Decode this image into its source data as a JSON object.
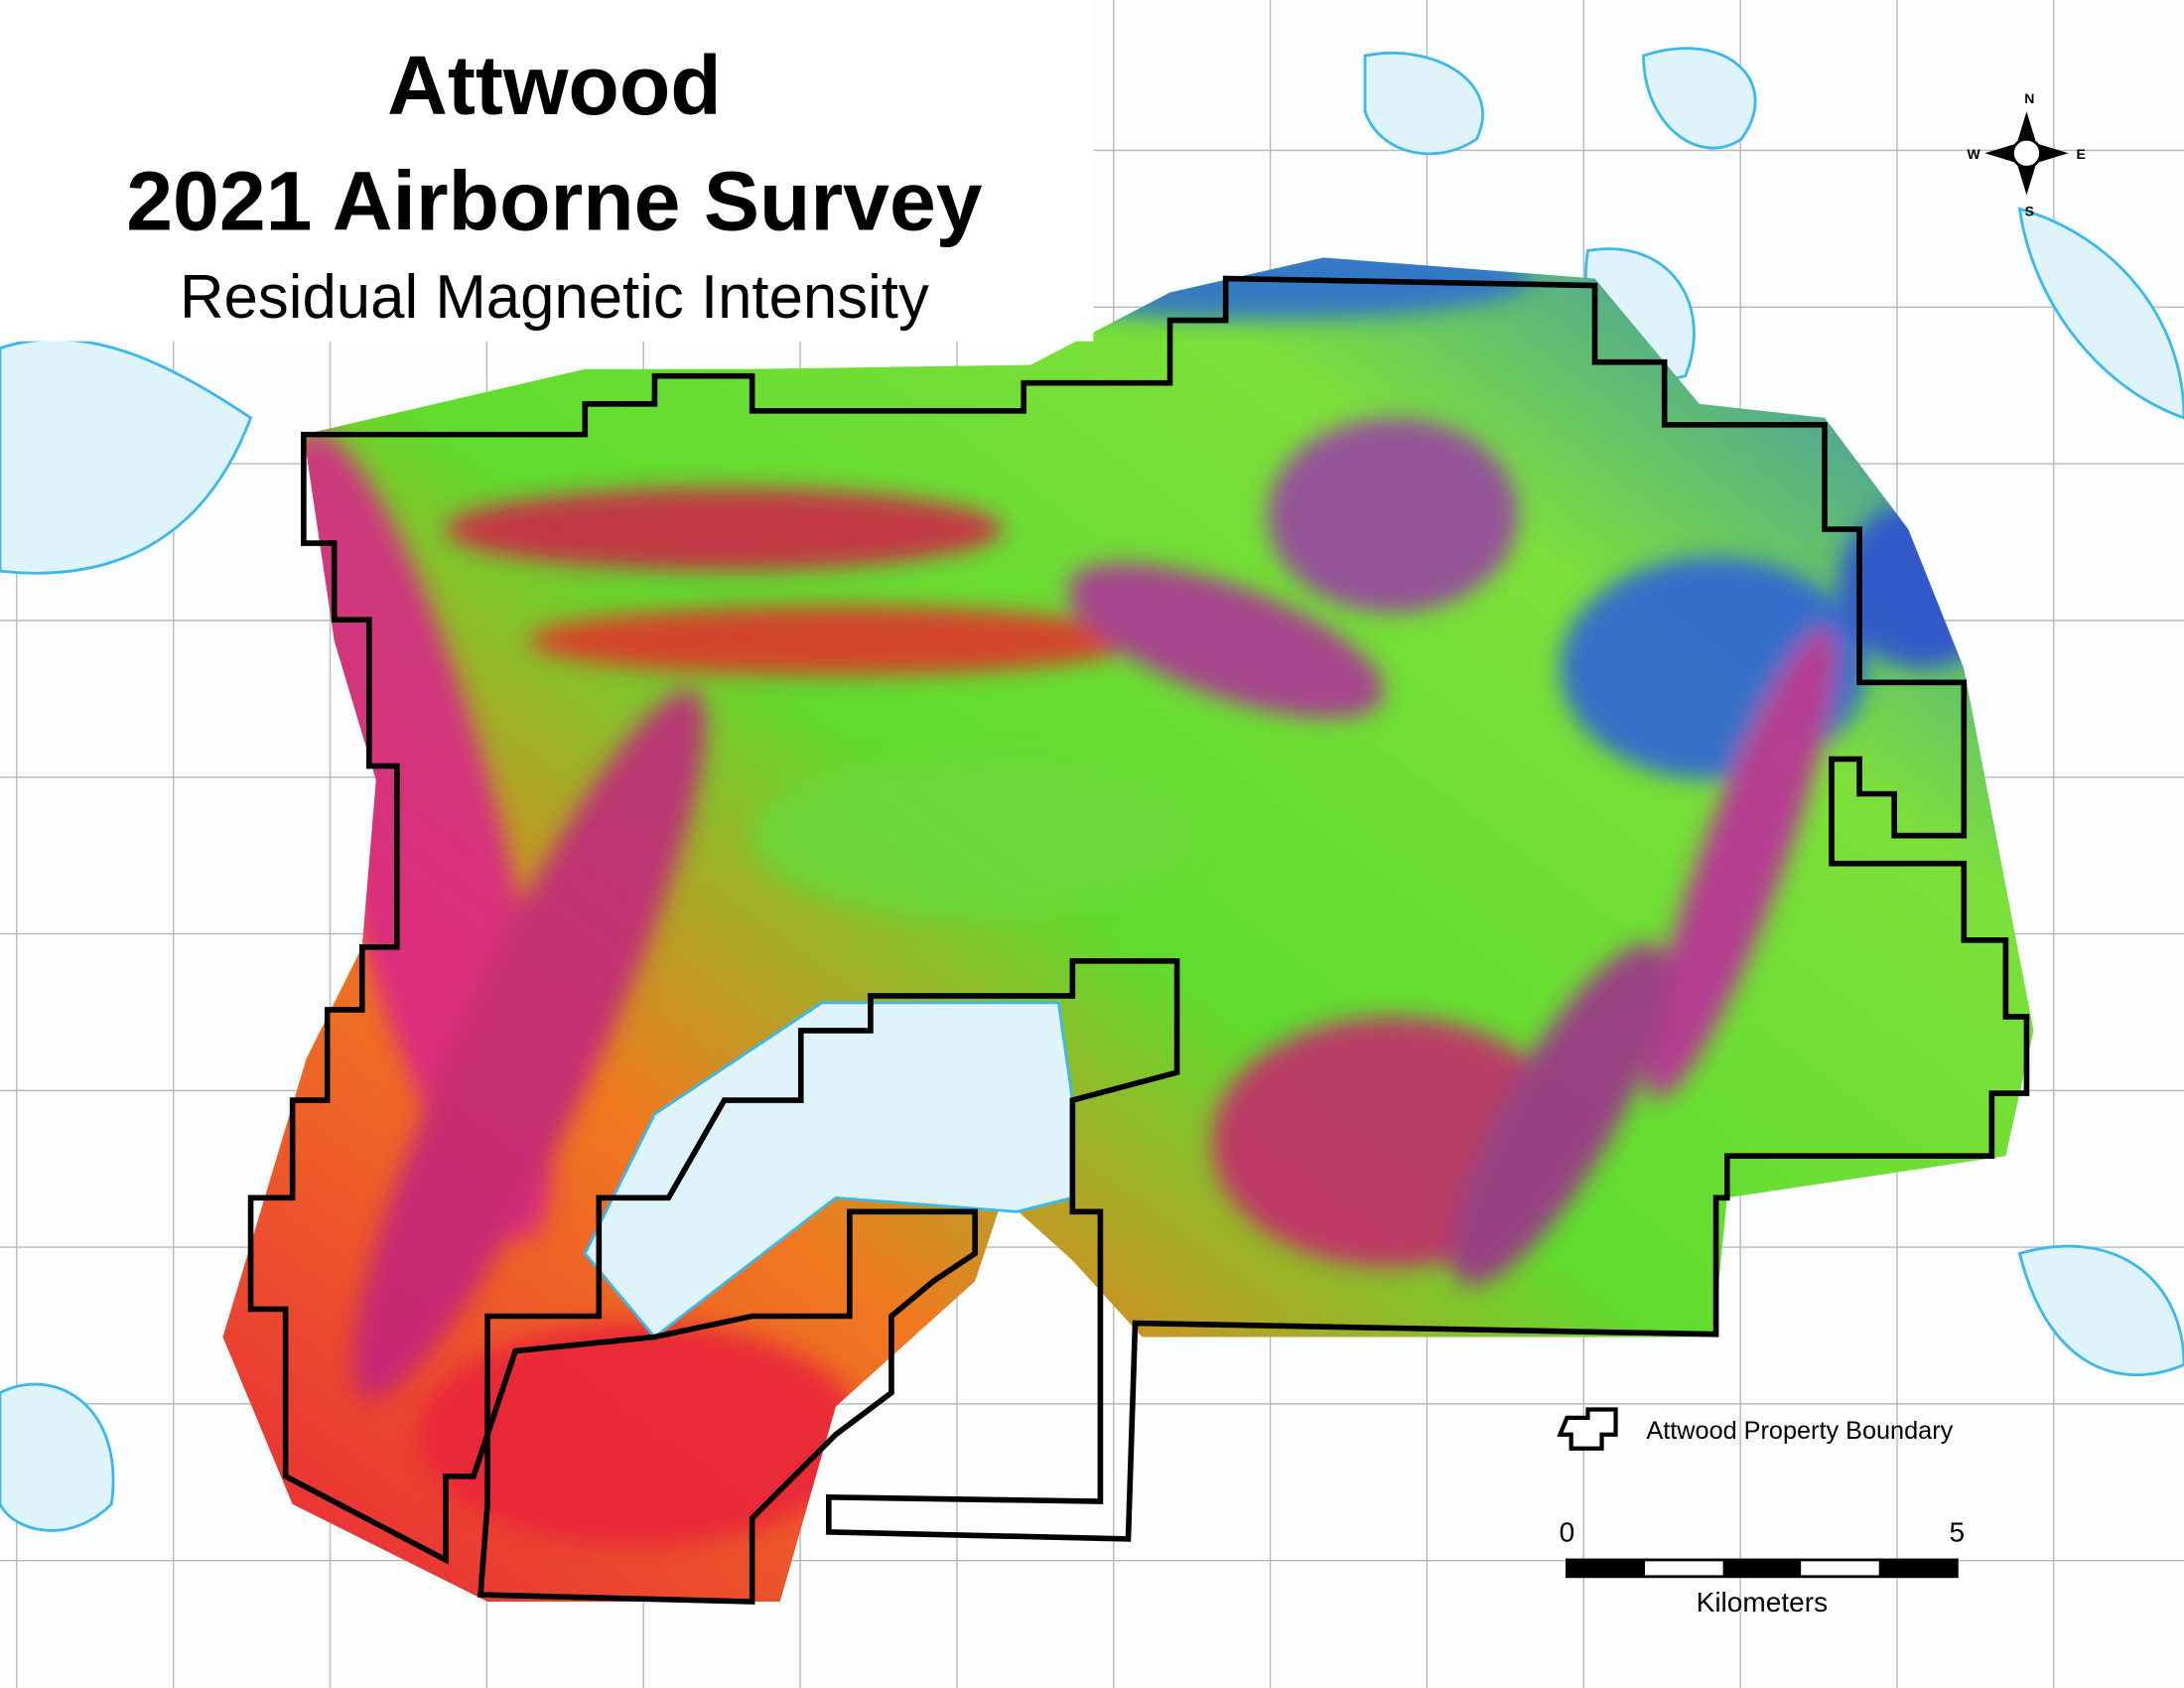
{
  "title": {
    "line1": "Attwood",
    "line2": "2021 Airborne Survey",
    "subtitle": "Residual Magnetic Intensity"
  },
  "compass": {
    "n": "N",
    "s": "S",
    "e": "E",
    "w": "W"
  },
  "legend": {
    "label": "Attwood Property Boundary"
  },
  "scale_bar": {
    "start": 0,
    "end": 5,
    "unit": "Kilometers"
  }
}
